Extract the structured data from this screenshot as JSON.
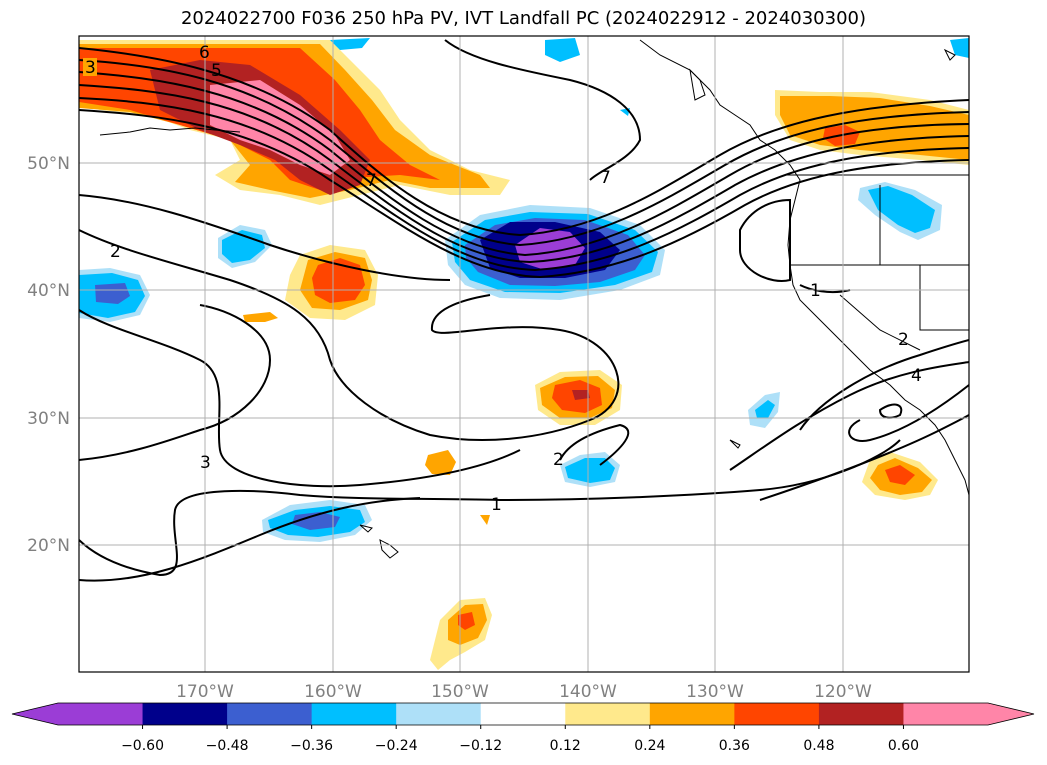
{
  "title": "2024022700 F036 250 hPa PV, IVT Landfall PC (2024022912 - 2024030300)",
  "axes": {
    "x_ticks": [
      "170°W",
      "160°W",
      "150°W",
      "140°W",
      "130°W",
      "120°W"
    ],
    "y_ticks": [
      "50°N",
      "40°N",
      "30°N",
      "20°N"
    ]
  },
  "colorbar": {
    "tick_labels": [
      "−0.60",
      "−0.48",
      "−0.36",
      "−0.24",
      "−0.12",
      "0.12",
      "0.24",
      "0.36",
      "0.48",
      "0.60"
    ],
    "colors": [
      "#9b3dd6",
      "#00008b",
      "#3c5fd0",
      "#00bfff",
      "#aee0f8",
      "#ffffff",
      "#ffe98c",
      "#ffa500",
      "#ff4500",
      "#b22222",
      "#ff85a8"
    ]
  },
  "contour_labels": [
    "3",
    "6",
    "5",
    "7",
    "7",
    "2",
    "1",
    "3",
    "1",
    "2",
    "4",
    "1",
    "2"
  ]
}
